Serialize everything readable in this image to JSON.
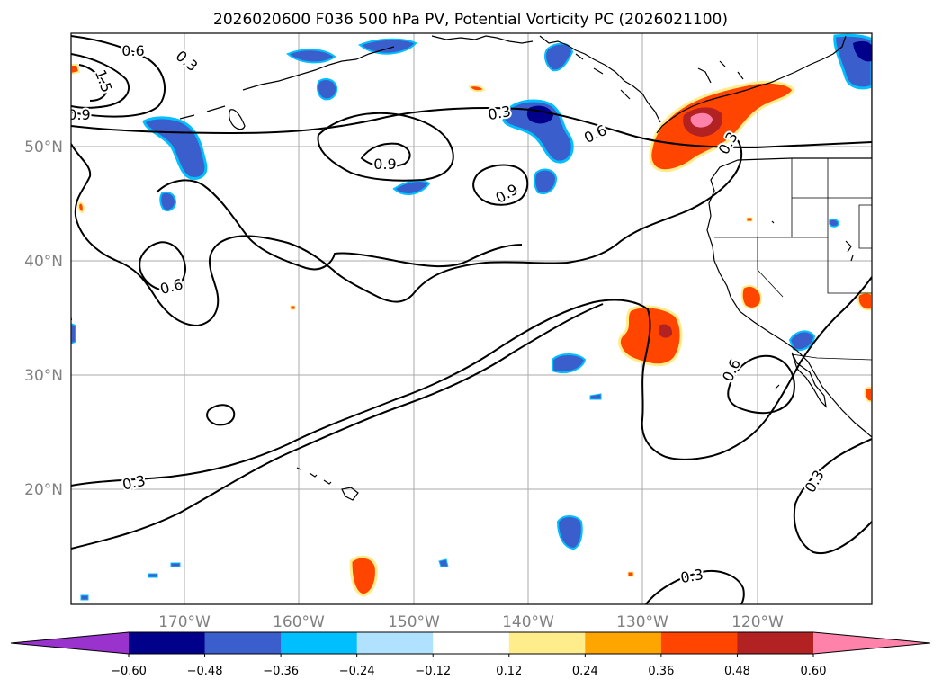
{
  "title": "2026020600 F036 500 hPa PV, Potential Vorticity PC (2026021100)",
  "map": {
    "lat_labels": [
      "50°N",
      "40°N",
      "30°N",
      "20°N"
    ],
    "lon_labels": [
      "170°W",
      "160°W",
      "150°W",
      "140°W",
      "130°W",
      "120°W"
    ],
    "contour_labels": [
      "0.6",
      "0.3",
      "1.5",
      "0.9",
      "0.3",
      "0.9",
      "0.6",
      "0.9",
      "0.3",
      "0.6",
      "0.6",
      "0.3",
      "0.3",
      "0.3"
    ]
  },
  "colorbar": {
    "ticks": [
      "−0.60",
      "−0.48",
      "−0.36",
      "−0.24",
      "−0.12",
      "0.12",
      "0.24",
      "0.36",
      "0.48",
      "0.60"
    ],
    "colors": [
      "#9a32cd",
      "#00008b",
      "#3a5fcd",
      "#00bfff",
      "#b0e2ff",
      "#ffffff",
      "#ffec8b",
      "#ffa500",
      "#ff4500",
      "#b22222",
      "#ff82ab"
    ]
  },
  "colors": {
    "frame": "#000000",
    "grid": "#aaaaaa",
    "contour": "#000000"
  }
}
